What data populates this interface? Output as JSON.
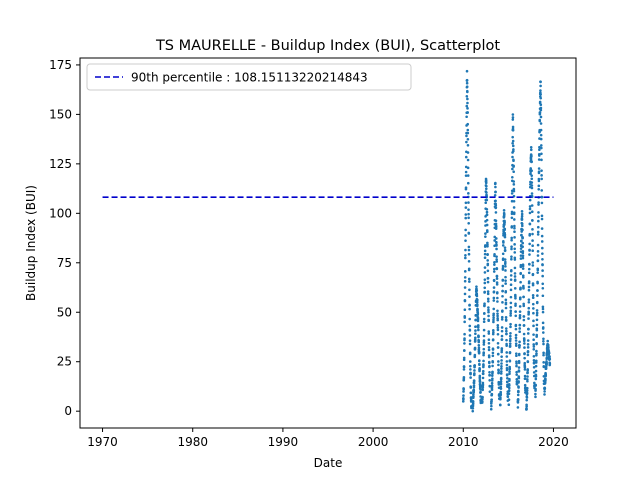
{
  "chart_data": {
    "type": "scatter",
    "title": "TS MAURELLE - Buildup Index (BUI), Scatterplot",
    "xlabel": "Date",
    "ylabel": "Buildup Index (BUI)",
    "x_type": "year",
    "xlim": [
      1967.5,
      2022.5
    ],
    "ylim": [
      -8.5,
      178.5
    ],
    "x_ticks": [
      1970,
      1980,
      1990,
      2000,
      2010,
      2020
    ],
    "y_ticks": [
      0,
      25,
      50,
      75,
      100,
      125,
      150,
      175
    ],
    "grid": false,
    "legend": {
      "position": "top-left"
    },
    "reference_line": {
      "label": "90th percentile : 108.15113220214843",
      "value": 108.15113220214843,
      "x_range": [
        1970.0,
        2020.0
      ],
      "color": "#0000cc",
      "style": "dashed"
    },
    "point_color": "#1f77b4",
    "seasons": [
      {
        "start": 2010.0,
        "end": 2010.9,
        "values": [
          5,
          18,
          38,
          65,
          100,
          135,
          170,
          150,
          115,
          85,
          55,
          30,
          12,
          3
        ]
      },
      {
        "start": 2011.05,
        "end": 2011.95,
        "values": [
          2,
          10,
          22,
          40,
          62,
          55,
          44,
          30,
          15,
          5
        ]
      },
      {
        "start": 2012.1,
        "end": 2012.95,
        "values": [
          4,
          15,
          30,
          55,
          85,
          119,
          105,
          80,
          55,
          30,
          10
        ]
      },
      {
        "start": 2013.1,
        "end": 2014.0,
        "values": [
          2,
          12,
          28,
          50,
          78,
          116,
          95,
          70,
          45,
          20,
          5
        ]
      },
      {
        "start": 2014.1,
        "end": 2014.95,
        "values": [
          3,
          14,
          32,
          58,
          85,
          100,
          90,
          65,
          40,
          18,
          6
        ]
      },
      {
        "start": 2015.05,
        "end": 2015.95,
        "values": [
          5,
          20,
          40,
          70,
          105,
          149,
          120,
          90,
          60,
          35,
          12
        ]
      },
      {
        "start": 2016.05,
        "end": 2016.9,
        "values": [
          3,
          15,
          35,
          60,
          85,
          100,
          78,
          50,
          25,
          8
        ]
      },
      {
        "start": 2017.0,
        "end": 2017.9,
        "values": [
          1,
          12,
          30,
          55,
          85,
          120,
          133,
          110,
          70,
          35,
          10
        ]
      },
      {
        "start": 2018.0,
        "end": 2018.95,
        "values": [
          8,
          25,
          50,
          80,
          115,
          145,
          167,
          130,
          85,
          45,
          15
        ]
      },
      {
        "start": 2019.0,
        "end": 2019.6,
        "values": [
          10,
          18,
          26,
          34,
          30,
          24
        ]
      }
    ]
  }
}
